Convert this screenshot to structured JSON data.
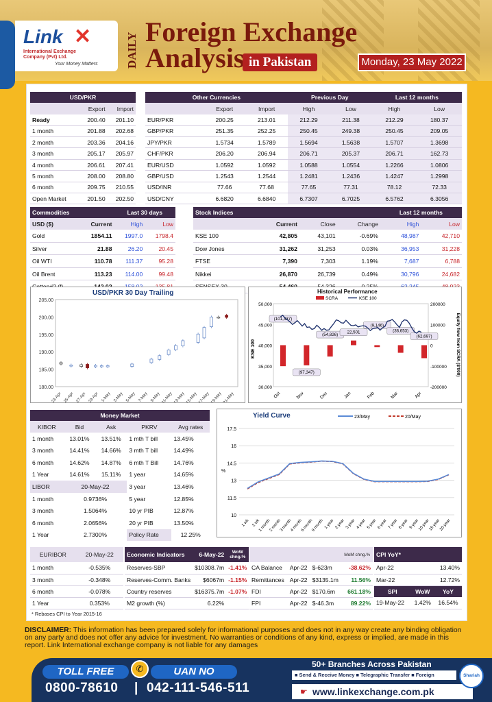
{
  "header": {
    "logo": "Link",
    "logo_sub": "International Exchange Company (Pvt) Ltd.",
    "logo_tag": "Your Money Matters",
    "daily": "DAILY",
    "title1": "Foreign Exchange",
    "title2": "Analysis",
    "in_pakistan": "in Pakistan",
    "date": "Monday, 23 May 2022"
  },
  "usdpkr": {
    "title": "USD/PKR",
    "cols": [
      "",
      "Export",
      "Import"
    ],
    "rows": [
      [
        "Ready",
        "200.40",
        "201.10"
      ],
      [
        "1 month",
        "201.88",
        "202.68"
      ],
      [
        "2 month",
        "203.36",
        "204.16"
      ],
      [
        "3 month",
        "205.17",
        "205.97"
      ],
      [
        "4 month",
        "206.61",
        "207.41"
      ],
      [
        "5 month",
        "208.00",
        "208.80"
      ],
      [
        "6 month",
        "209.75",
        "210.55"
      ],
      [
        "Open Market",
        "201.50",
        "202.50"
      ]
    ]
  },
  "other": {
    "title": "Other Currencies",
    "prev": "Previous Day",
    "last12": "Last 12 months",
    "cols": [
      "",
      "Export",
      "Import",
      "High",
      "Low",
      "High",
      "Low"
    ],
    "rows": [
      [
        "EUR/PKR",
        "200.25",
        "213.01",
        "212.29",
        "211.38",
        "212.29",
        "180.37"
      ],
      [
        "GBP/PKR",
        "251.35",
        "252.25",
        "250.45",
        "249.38",
        "250.45",
        "209.05"
      ],
      [
        "JPY/PKR",
        "1.5734",
        "1.5789",
        "1.5694",
        "1.5638",
        "1.5707",
        "1.3698"
      ],
      [
        "CHF/PKR",
        "206.20",
        "206.94",
        "206.71",
        "205.37",
        "206.71",
        "162.73"
      ],
      [
        "EUR/USD",
        "1.0592",
        "1.0592",
        "1.0588",
        "1.0554",
        "1.2266",
        "1.0806"
      ],
      [
        "GBP/USD",
        "1.2543",
        "1.2544",
        "1.2481",
        "1.2436",
        "1.4247",
        "1.2998"
      ],
      [
        "USD/INR",
        "77.66",
        "77.68",
        "77.65",
        "77.31",
        "78.12",
        "72.33"
      ],
      [
        "USD/CNY",
        "6.6820",
        "6.6840",
        "6.7307",
        "6.7025",
        "6.5762",
        "6.3056"
      ]
    ]
  },
  "commodities": {
    "title": "Commodities",
    "last30": "Last 30 days",
    "cols": [
      "USD ($)",
      "Current",
      "High",
      "Low"
    ],
    "rows": [
      [
        "Gold",
        "1854.11",
        "1997.0",
        "1798.4"
      ],
      [
        "Silver",
        "21.88",
        "26.20",
        "20.45"
      ],
      [
        "Oil WTI",
        "110.78",
        "111.37",
        "95.28"
      ],
      [
        "Oil Brent",
        "113.23",
        "114.00",
        "99.48"
      ],
      [
        "Cotton#2 (f)",
        "142.02",
        "158.02",
        "135.81"
      ]
    ]
  },
  "stocks": {
    "title": "Stock Indices",
    "last12": "Last 12 months",
    "cols": [
      "",
      "Current",
      "Close",
      "Change",
      "High",
      "Low"
    ],
    "rows": [
      [
        "KSE 100",
        "42,805",
        "43,101",
        "-0.69%",
        "48,987",
        "42,710"
      ],
      [
        "Dow Jones",
        "31,262",
        "31,253",
        "0.03%",
        "36,953",
        "31,228"
      ],
      [
        "FTSE",
        "7,390",
        "7,303",
        "1.19%",
        "7,687",
        "6,788"
      ],
      [
        "Nikkei",
        "26,870",
        "26,739",
        "0.49%",
        "30,796",
        "24,682"
      ],
      [
        "SENSEX 30",
        "54,460",
        "54,326",
        "0.25%",
        "62,245",
        "48,923"
      ]
    ]
  },
  "money": {
    "title": "Money Market",
    "kibor_cols": [
      "KIBOR",
      "Bid",
      "Ask"
    ],
    "kibor": [
      [
        "1 month",
        "13.01%",
        "13.51%"
      ],
      [
        "3 month",
        "14.41%",
        "14.66%"
      ],
      [
        "6 month",
        "14.62%",
        "14.87%"
      ],
      [
        "1 Year",
        "14.61%",
        "15.11%"
      ]
    ],
    "libor_label": "LIBOR",
    "libor_date": "20-May-22",
    "libor": [
      [
        "1 month",
        "0.9736%"
      ],
      [
        "3 month",
        "1.5064%"
      ],
      [
        "6 month",
        "2.0656%"
      ],
      [
        "1 Year",
        "2.7300%"
      ]
    ],
    "pkrv_cols": [
      "PKRV",
      "Avg rates"
    ],
    "pkrv": [
      [
        "1 mth T bill",
        "13.45%"
      ],
      [
        "3 mth T bill",
        "14.49%"
      ],
      [
        "6 mth T Bill",
        "14.76%"
      ],
      [
        "1 year",
        "14.65%"
      ],
      [
        "3 year",
        "13.46%"
      ],
      [
        "5 year",
        "12.85%"
      ],
      [
        "10 yr PIB",
        "12.87%"
      ],
      [
        "20 yr PIB",
        "13.50%"
      ]
    ],
    "policy_label": "Policy Rate",
    "policy": "12.25%"
  },
  "euribor": {
    "label": "EURIBOR",
    "date": "20-May-22",
    "rows": [
      [
        "1 month",
        "-0.535%"
      ],
      [
        "3 month",
        "-0.348%"
      ],
      [
        "6 month",
        "-0.078%"
      ],
      [
        "1 Year",
        "0.353%"
      ]
    ]
  },
  "econ": {
    "title": "Economic Indicators",
    "date": "6-May-22",
    "wow": "WoW chng.%",
    "mom": "MoM chng.%",
    "left": [
      [
        "Reserves-SBP",
        "$10308.7m",
        "-1.41%"
      ],
      [
        "Reserves-Comm. Banks",
        "$6067m",
        "-1.15%"
      ],
      [
        "Country reserves",
        "$16375.7m",
        "-1.07%"
      ],
      [
        "M2 growth (%)",
        "6.22%",
        ""
      ]
    ],
    "right": [
      [
        "CA Balance",
        "Apr-22",
        "$-623m",
        "-38.62%"
      ],
      [
        "Remittances",
        "Apr-22",
        "$3135.1m",
        "11.56%"
      ],
      [
        "FDI",
        "Apr-22",
        "$170.6m",
        "661.18%"
      ],
      [
        "FPI",
        "Apr-22",
        "$-46.3m",
        "89.22%"
      ]
    ]
  },
  "cpi": {
    "title": "CPI YoY*",
    "rows": [
      [
        "Apr-22",
        "13.40%"
      ],
      [
        "Mar-22",
        "12.72%"
      ]
    ],
    "spi_cols": [
      "SPI",
      "WoW",
      "YoY"
    ],
    "spi": [
      "19-May-22",
      "1.42%",
      "16.54%"
    ]
  },
  "footnote": "* Rebases CPI to Year 2015-16",
  "disclaimer_label": "DISCLAIMER:",
  "disclaimer": " This information has been prepared solely for informational purposes and does not in any way create any binding obligation on any  party and does not offer any advice for investment. No warranties or conditions of any kind, express or implied, are made in this report. Link International exchange company is not liable for any damages",
  "footer": {
    "toll": "TOLL FREE",
    "uan": "UAN NO",
    "toll_no": "0800-78610",
    "sep": "|",
    "uan_no": "042-111-546-511",
    "branches": "50+ Branches Across Pakistan",
    "services": "■ Send & Receive Money  ■ Telegraphic Transfer  ■ Foreign Currency Exchange",
    "web": "www.linkexchange.com.pk",
    "badge": "Shariah"
  },
  "colors": {
    "accent": "#3d2a4a",
    "red": "#c7242a",
    "blue": "#2b4fd9",
    "bg": "#f5b921"
  },
  "chart_data": [
    {
      "type": "bar",
      "title": "USD/PKR 30 Day Trailing",
      "categories": [
        "23-Apr",
        "25-Apr",
        "27-Apr",
        "29-Apr",
        "1-May",
        "3-May",
        "5-May",
        "7-May",
        "9-May",
        "11-May",
        "13-May",
        "15-May",
        "17-May",
        "19-May",
        "21-May"
      ],
      "ylim": [
        180,
        205
      ],
      "yticks": [
        "180.00",
        "185.00",
        "190.00",
        "195.00",
        "200.00",
        "205.00"
      ],
      "candles": [
        {
          "i": 0,
          "o": 186.9,
          "c": 186.5,
          "col": "#555"
        },
        {
          "i": 1,
          "o": 186.2,
          "c": 185.9,
          "col": "#6a8cc9"
        },
        {
          "i": 2,
          "o": 186.3,
          "c": 185.8,
          "col": "#555"
        },
        {
          "i": 2.6,
          "o": 186.4,
          "c": 185.4,
          "col": "#8b1a1a"
        },
        {
          "i": 3.4,
          "o": 186.1,
          "c": 185.7,
          "col": "#6a8cc9"
        },
        {
          "i": 4,
          "o": 186.0,
          "c": 185.7,
          "col": "#6a8cc9"
        },
        {
          "i": 4.6,
          "o": 186.0,
          "c": 185.7,
          "col": "#6a8cc9"
        },
        {
          "i": 7,
          "o": 186.5,
          "c": 185.8,
          "col": "#6a8cc9"
        },
        {
          "i": 8.9,
          "o": 187.9,
          "c": 186.9,
          "col": "#6a8cc9"
        },
        {
          "i": 9.7,
          "o": 188.9,
          "c": 187.8,
          "col": "#6a8cc9"
        },
        {
          "i": 10.6,
          "o": 190.5,
          "c": 189.2,
          "col": "#6a8cc9"
        },
        {
          "i": 11.3,
          "o": 191.8,
          "c": 190.6,
          "col": "#6a8cc9"
        },
        {
          "i": 12.0,
          "o": 193.2,
          "c": 191.7,
          "col": "#6a8cc9"
        },
        {
          "i": 13.5,
          "o": 195.1,
          "c": 192.7,
          "col": "#6a8cc9"
        },
        {
          "i": 14.1,
          "o": 197.0,
          "c": 194.0,
          "col": "#6a8cc9"
        },
        {
          "i": 14.8,
          "o": 200.0,
          "c": 197.2,
          "col": "#6a8cc9"
        },
        {
          "i": 15.5,
          "o": 200.0,
          "c": 199.9,
          "col": "#555"
        },
        {
          "i": 16.3,
          "o": 200.5,
          "c": 199.9,
          "col": "#8b1a1a"
        }
      ]
    },
    {
      "type": "bar",
      "title": "Historical Performance",
      "series": [
        {
          "name": "SCRA",
          "values": [
            -101337,
            -97347,
            -54826,
            22501,
            -9146,
            -36653,
            -62697
          ]
        },
        {
          "name": "KSE 100"
        }
      ],
      "categories": [
        "Oct",
        "Nov",
        "Dec",
        "Jan",
        "Feb",
        "Mar",
        "Apr"
      ],
      "labels": [
        "(101,337)",
        "(97,347)",
        "(54,826)",
        "22,501",
        "(9,146)",
        "(36,653)",
        "(62,697)"
      ],
      "ylabel": "KSE 100",
      "y2label": "Equity flow from SCRA ($'000)",
      "ylim": [
        30000,
        50000
      ],
      "y2lim": [
        -200000,
        200000
      ],
      "yticks": [
        "30,000",
        "35,000",
        "40,000",
        "45,000",
        "50,000"
      ],
      "y2ticks": [
        "-200000",
        "-100000",
        "0",
        "100000",
        "200000"
      ],
      "kse": [
        46800,
        47200,
        46500,
        46100,
        45600,
        45000,
        45400,
        45900,
        45300,
        44600,
        45200,
        44300,
        44400,
        43800,
        44000,
        44800,
        44300,
        43600,
        44000,
        43600,
        43700,
        44500,
        45200,
        46100,
        45900,
        45400,
        45300,
        46000,
        45400,
        44800,
        44700,
        44900,
        44400,
        44600,
        44700,
        44600,
        44100,
        43500,
        44000,
        44100,
        44300,
        43600,
        44200,
        44500,
        45800,
        45900,
        46200,
        45600,
        44900,
        44300,
        45600,
        46100,
        46000,
        45300,
        44200,
        43300,
        42900,
        43400,
        43100
      ]
    },
    {
      "type": "line",
      "title": "Yield Curve",
      "categories": [
        "1 wk",
        "2 wk",
        "1 month",
        "2 month",
        "3 month",
        "4 month",
        "6 month",
        "9 month",
        "1 year",
        "2 year",
        "3 year",
        "4 year",
        "5 year",
        "6 year",
        "7 year",
        "8 year",
        "9 year",
        "10 year",
        "15 year",
        "20 year"
      ],
      "series": [
        {
          "name": "23/May",
          "values": [
            12.3,
            12.85,
            13.2,
            13.55,
            14.45,
            14.55,
            14.6,
            14.68,
            14.65,
            14.45,
            13.6,
            13.1,
            12.9,
            12.9,
            12.9,
            12.9,
            12.9,
            12.92,
            13.1,
            13.5
          ]
        },
        {
          "name": "20/May",
          "values": [
            12.25,
            12.8,
            13.15,
            13.5,
            14.42,
            14.52,
            14.58,
            14.66,
            14.63,
            14.43,
            13.58,
            13.08,
            12.88,
            12.88,
            12.88,
            12.88,
            12.88,
            12.9,
            13.08,
            13.48
          ]
        }
      ],
      "ylabel": "%",
      "ylim": [
        10,
        17.5
      ],
      "yticks": [
        "10",
        "11.5",
        "13",
        "14.5",
        "16",
        "17.5"
      ]
    }
  ]
}
